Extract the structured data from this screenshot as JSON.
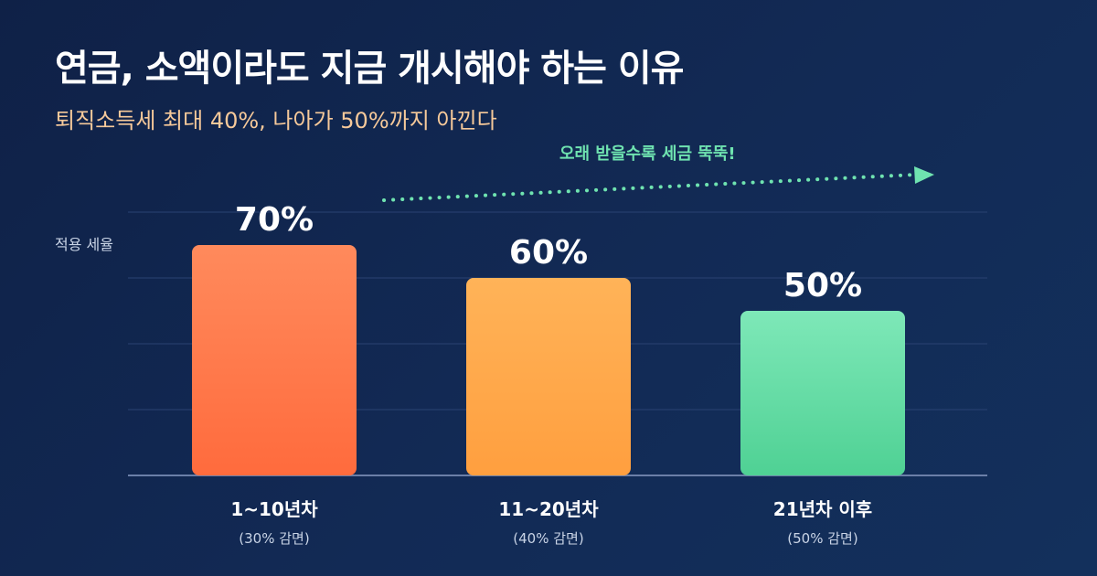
{
  "title": "연금, 소액이라도 지금 개시해야 하는 이유",
  "subtitle": "퇴직소득세 최대 40%, 나아가 50%까지 아낀다",
  "annotation": "오래 받을수록 세금 뚝뚝!",
  "chart_data": {
    "type": "bar",
    "ylabel": "적용 세율",
    "ylim": [
      0,
      90
    ],
    "grid": true,
    "categories": [
      "1~10년차",
      "11~20년차",
      "21년차 이후"
    ],
    "sublabels": [
      "(30% 감면)",
      "(40% 감면)",
      "(50% 감면)"
    ],
    "values": [
      70,
      60,
      50
    ],
    "value_labels": [
      "70%",
      "60%",
      "50%"
    ],
    "colors": [
      [
        "#ff8a5c",
        "#ff6b3d"
      ],
      [
        "#ffb358",
        "#ff9f3f"
      ],
      [
        "#7ee8b8",
        "#4fd194"
      ]
    ]
  },
  "colors": {
    "background": "#0f2147",
    "subtitle": "#f6c99a",
    "accent": "#6fe3b0"
  }
}
